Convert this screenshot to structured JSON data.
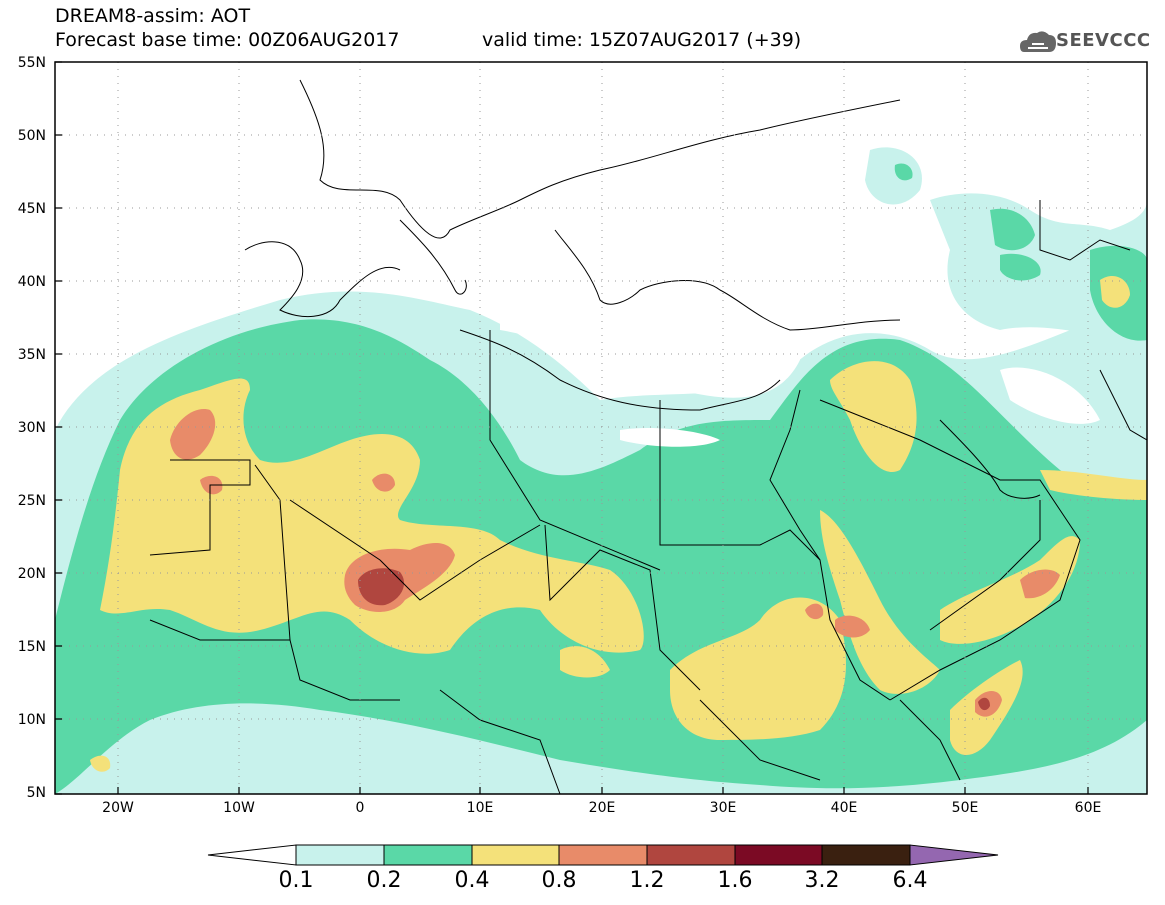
{
  "header": {
    "title_line1": "DREAM8-assim: AOT",
    "title_line2": "Forecast base time: 00Z06AUG2017",
    "title_valid": "valid time: 15Z07AUG2017 (+39)",
    "logo_text": "SEEVCCC"
  },
  "map": {
    "lat_labels": [
      "55N",
      "50N",
      "45N",
      "40N",
      "35N",
      "30N",
      "25N",
      "20N",
      "15N",
      "10N",
      "5N"
    ],
    "lon_labels": [
      "20W",
      "10W",
      "0",
      "10E",
      "20E",
      "30E",
      "40E",
      "50E",
      "60E"
    ]
  },
  "colorbar": {
    "labels": [
      "0.1",
      "0.2",
      "0.4",
      "0.8",
      "1.2",
      "1.6",
      "3.2",
      "6.4"
    ],
    "colors": [
      "#ffffff",
      "#c8f2ec",
      "#5ad8a7",
      "#f4e17a",
      "#e88b69",
      "#b0463f",
      "#7b0a24",
      "#3a2010",
      "#9467b0"
    ]
  },
  "palette": {
    "land": "#ffffff",
    "border": "#000000"
  }
}
